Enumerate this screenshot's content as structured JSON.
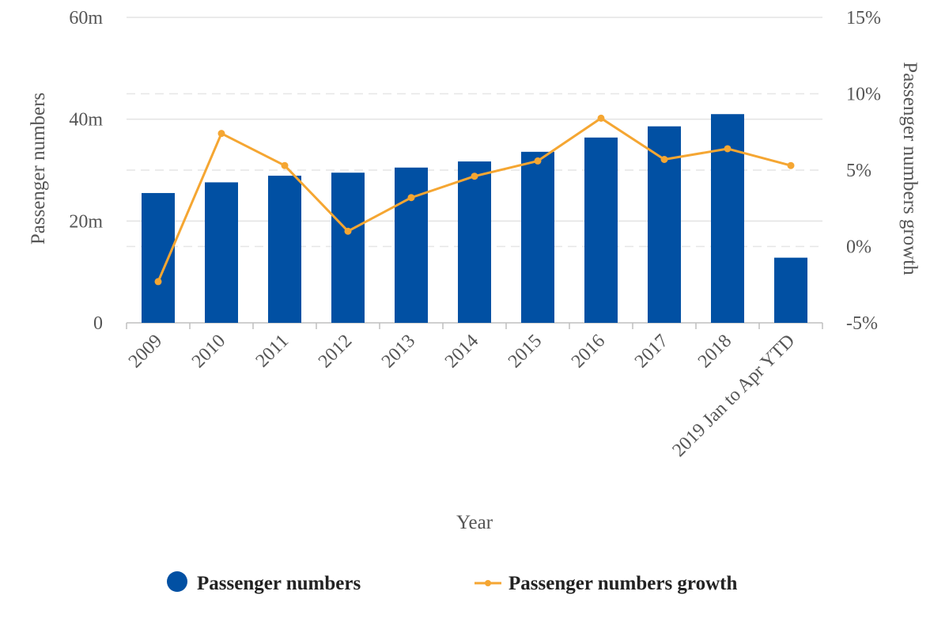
{
  "chart_data": {
    "type": "bar",
    "xlabel": "Year",
    "categories": [
      "2009",
      "2010",
      "2011",
      "2012",
      "2013",
      "2014",
      "2015",
      "2016",
      "2017",
      "2018",
      "2019 Jan to Apr YTD"
    ],
    "series": [
      {
        "name": "Passenger numbers",
        "type": "bar",
        "axis": "left",
        "color": "#0150A3",
        "values": [
          25.5,
          27.6,
          28.9,
          29.5,
          30.5,
          31.7,
          33.6,
          36.4,
          38.6,
          41.0,
          12.8
        ]
      },
      {
        "name": "Passenger numbers growth",
        "type": "line",
        "axis": "right",
        "color": "#F5A632",
        "values": [
          -2.3,
          7.4,
          5.3,
          1.0,
          3.2,
          4.6,
          5.6,
          8.4,
          5.7,
          6.4,
          5.3
        ]
      }
    ],
    "left_axis": {
      "label": "Passenger numbers",
      "range": [
        0,
        60
      ],
      "ticks": [
        0,
        20,
        40,
        60
      ],
      "tick_labels": [
        "0",
        "20m",
        "40m",
        "60m"
      ]
    },
    "right_axis": {
      "label": "Passenger numbers growth",
      "range": [
        -5,
        15
      ],
      "ticks": [
        -5,
        0,
        5,
        10,
        15
      ],
      "tick_labels": [
        "-5%",
        "0%",
        "5%",
        "10%",
        "15%"
      ]
    },
    "grid": true,
    "legend_position": "bottom"
  }
}
